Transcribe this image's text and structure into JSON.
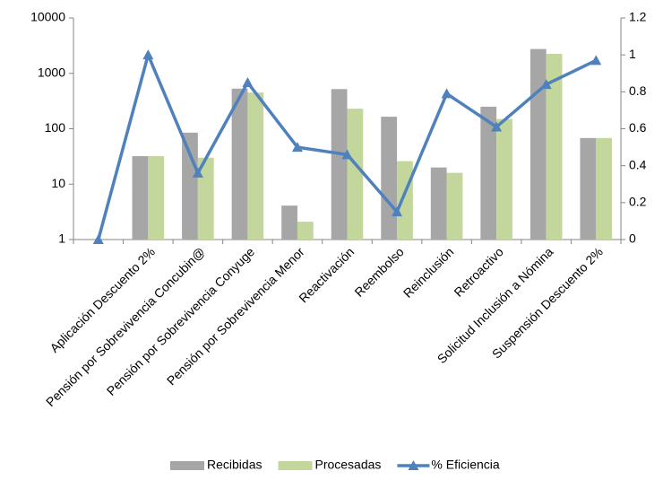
{
  "chart_data": {
    "type": "bar",
    "categories": [
      null,
      "Aplicación Descuento 2%",
      "Pensión por Sobrevivencia Concubin@",
      "Pensión por Sobrevivencia Conyuge",
      "Pensión por Sobrevivencia Menor",
      "Reactivación",
      "Reembolso",
      "Reinclusión",
      "Retroactivo",
      "Solicitud Inclusión a Nómina",
      "Suspensión Descuento 2%"
    ],
    "series": [
      {
        "name": "Recibidas",
        "color": "#a6a6a6",
        "values": [
          null,
          32,
          85,
          530,
          4.1,
          520,
          165,
          20,
          250,
          2750,
          68
        ]
      },
      {
        "name": "Procesadas",
        "color": "#c3d69b",
        "values": [
          null,
          32,
          30,
          450,
          2.1,
          230,
          26,
          16,
          150,
          2250,
          68
        ]
      },
      {
        "name": "% Eficiencia",
        "color": "#4f81bd",
        "type": "line",
        "axis": "y2",
        "values": [
          0,
          1.0,
          0.36,
          0.85,
          0.5,
          0.46,
          0.15,
          0.79,
          0.61,
          0.84,
          0.97
        ]
      }
    ],
    "ylim": [
      1,
      10000
    ],
    "yticks": [
      1,
      10,
      100,
      1000,
      10000
    ],
    "log_y": true,
    "y2lim": [
      0,
      1.2
    ],
    "y2ticks": [
      0,
      0.2,
      0.4,
      0.6,
      0.8,
      1,
      1.2
    ],
    "legend": "bottom",
    "grid": false
  }
}
